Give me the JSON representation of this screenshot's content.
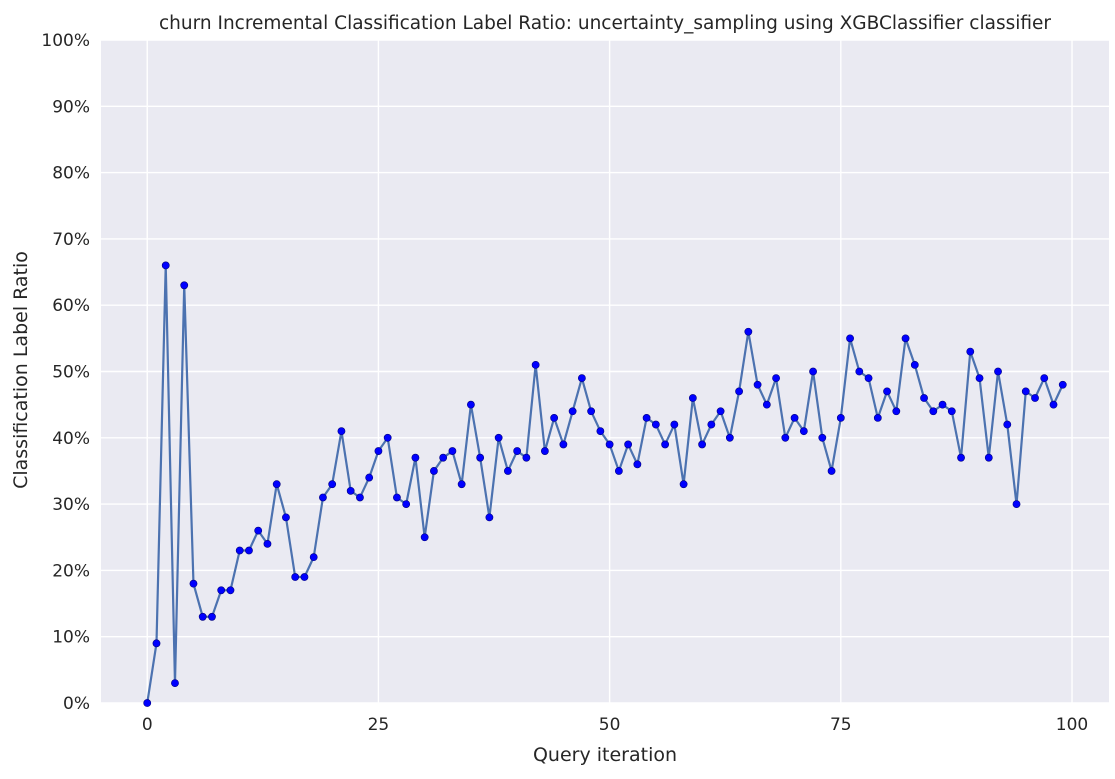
{
  "chart_data": {
    "type": "line",
    "title": "churn Incremental Classification Label Ratio: uncertainty_sampling using XGBClassifier classifier",
    "xlabel": "Query iteration",
    "ylabel": "Classification Label Ratio",
    "xlim": [
      -5,
      104
    ],
    "ylim": [
      0,
      1
    ],
    "x_ticks": [
      0,
      25,
      50,
      75,
      100
    ],
    "y_ticks": [
      0,
      0.1,
      0.2,
      0.3,
      0.4,
      0.5,
      0.6,
      0.7,
      0.8,
      0.9,
      1.0
    ],
    "x_tick_labels": [
      "0",
      "25",
      "50",
      "75",
      "100"
    ],
    "y_tick_labels": [
      "0%",
      "10%",
      "20%",
      "30%",
      "40%",
      "50%",
      "60%",
      "70%",
      "80%",
      "90%",
      "100%"
    ],
    "grid": true,
    "line_color": "#4c72b0",
    "marker_color": "#0000ff",
    "background_color": "#eaeaf2",
    "series": [
      {
        "x": [
          0,
          1,
          2,
          3,
          4,
          5,
          6,
          7,
          8,
          9,
          10,
          11,
          12,
          13,
          14,
          15,
          16,
          17,
          18,
          19,
          20,
          21,
          22,
          23,
          24,
          25,
          26,
          27,
          28,
          29,
          30,
          31,
          32,
          33,
          34,
          35,
          36,
          37,
          38,
          39,
          40,
          41,
          42,
          43,
          44,
          45,
          46,
          47,
          48,
          49,
          50,
          51,
          52,
          53,
          54,
          55,
          56,
          57,
          58,
          59,
          60,
          61,
          62,
          63,
          64,
          65,
          66,
          67,
          68,
          69,
          70,
          71,
          72,
          73,
          74,
          75,
          76,
          77,
          78,
          79,
          80,
          81,
          82,
          83,
          84,
          85,
          86,
          87,
          88,
          89,
          90,
          91,
          92,
          93,
          94,
          95,
          96,
          97,
          98,
          99
        ],
        "values": [
          0.0,
          0.09,
          0.66,
          0.03,
          0.63,
          0.18,
          0.13,
          0.13,
          0.17,
          0.17,
          0.23,
          0.23,
          0.26,
          0.24,
          0.33,
          0.28,
          0.19,
          0.19,
          0.22,
          0.31,
          0.33,
          0.41,
          0.32,
          0.31,
          0.34,
          0.38,
          0.4,
          0.31,
          0.3,
          0.37,
          0.25,
          0.35,
          0.37,
          0.38,
          0.33,
          0.45,
          0.37,
          0.28,
          0.4,
          0.35,
          0.38,
          0.37,
          0.51,
          0.38,
          0.43,
          0.39,
          0.44,
          0.49,
          0.44,
          0.41,
          0.39,
          0.35,
          0.39,
          0.36,
          0.43,
          0.42,
          0.39,
          0.42,
          0.33,
          0.46,
          0.39,
          0.42,
          0.44,
          0.4,
          0.47,
          0.56,
          0.48,
          0.45,
          0.49,
          0.4,
          0.43,
          0.41,
          0.5,
          0.4,
          0.35,
          0.43,
          0.55,
          0.5,
          0.49,
          0.43,
          0.47,
          0.44,
          0.55,
          0.51,
          0.46,
          0.44,
          0.45,
          0.44,
          0.37,
          0.53,
          0.49,
          0.37,
          0.5,
          0.42,
          0.3,
          0.47,
          0.46,
          0.49,
          0.45,
          0.48
        ]
      }
    ]
  }
}
